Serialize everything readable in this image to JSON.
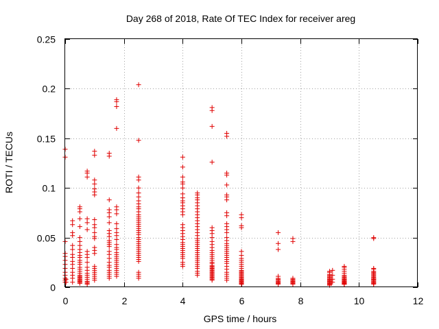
{
  "chart_data": {
    "type": "scatter",
    "title": "Day 268 of 2018, Rate Of TEC Index for receiver areg",
    "xlabel": "GPS time / hours",
    "ylabel": "ROTI / TECUs",
    "xlim": [
      0,
      12
    ],
    "ylim": [
      0,
      0.25
    ],
    "xticks": [
      0,
      2,
      4,
      6,
      8,
      10,
      12
    ],
    "yticks": [
      0,
      0.05,
      0.1,
      0.15,
      0.2,
      0.25
    ],
    "xtick_labels": [
      "0",
      "2",
      "4",
      "6",
      "8",
      "10",
      "12"
    ],
    "ytick_labels": [
      "0",
      "0.05",
      "0.1",
      "0.15",
      "0.2",
      "0.25"
    ],
    "grid": true,
    "marker": "+",
    "color": "#e00000",
    "series": [
      {
        "name": "ROTI",
        "x": [
          0,
          0,
          0,
          0,
          0,
          0,
          0,
          0,
          0,
          0,
          0,
          0,
          0,
          0.03,
          0.03,
          0.25,
          0.25,
          0.25,
          0.25,
          0.25,
          0.25,
          0.25,
          0.25,
          0.25,
          0.25,
          0.25,
          0.25,
          0.25,
          0.25,
          0.25,
          0.5,
          0.5,
          0.5,
          0.5,
          0.5,
          0.5,
          0.5,
          0.5,
          0.5,
          0.5,
          0.5,
          0.5,
          0.5,
          0.5,
          0.5,
          0.5,
          0.5,
          0.5,
          0.5,
          0.5,
          0.5,
          0.5,
          0.5,
          0.5,
          0.5,
          0.5,
          0.5,
          0.5,
          0.5,
          0.5,
          0.75,
          0.75,
          0.75,
          0.75,
          0.75,
          0.75,
          0.75,
          0.75,
          0.75,
          0.75,
          0.75,
          0.75,
          0.75,
          0.75,
          0.75,
          0.75,
          0.75,
          0.75,
          0.75,
          0.75,
          1,
          1,
          1,
          1,
          1,
          1,
          1,
          1,
          1,
          1,
          1,
          1,
          1,
          1,
          1,
          1,
          1,
          1,
          1,
          1,
          1,
          1,
          1,
          1,
          1.5,
          1.5,
          1.5,
          1.5,
          1.5,
          1.5,
          1.5,
          1.5,
          1.5,
          1.5,
          1.5,
          1.5,
          1.5,
          1.5,
          1.5,
          1.5,
          1.5,
          1.5,
          1.5,
          1.5,
          1.5,
          1.5,
          1.5,
          1.5,
          1.5,
          1.75,
          1.75,
          1.75,
          1.75,
          1.75,
          1.75,
          1.75,
          1.75,
          1.75,
          1.75,
          1.75,
          1.75,
          1.75,
          1.75,
          1.75,
          1.75,
          1.75,
          1.75,
          1.75,
          1.75,
          1.75,
          1.75,
          1.75,
          1.75,
          1.75,
          1.75,
          1.75,
          1.75,
          2.5,
          2.5,
          2.5,
          2.5,
          2.5,
          2.5,
          2.5,
          2.5,
          2.5,
          2.5,
          2.5,
          2.5,
          2.5,
          2.5,
          2.5,
          2.5,
          2.5,
          2.5,
          2.5,
          2.5,
          2.5,
          2.5,
          2.5,
          2.5,
          2.5,
          2.5,
          2.5,
          2.5,
          2.5,
          2.5,
          2.5,
          2.5,
          2.5,
          2.5,
          2.5,
          2.5,
          2.5,
          2.5,
          2.5,
          2.5,
          4,
          4,
          4,
          4,
          4,
          4,
          4,
          4,
          4,
          4,
          4,
          4,
          4,
          4,
          4,
          4,
          4,
          4,
          4,
          4,
          4,
          4,
          4,
          4,
          4,
          4,
          4,
          4,
          4,
          4,
          4,
          4,
          4.5,
          4.5,
          4.5,
          4.5,
          4.5,
          4.5,
          4.5,
          4.5,
          4.5,
          4.5,
          4.5,
          4.5,
          4.5,
          4.5,
          4.5,
          4.5,
          4.5,
          4.5,
          4.5,
          4.5,
          4.5,
          4.5,
          4.5,
          4.5,
          4.5,
          4.5,
          4.5,
          4.5,
          4.5,
          4.5,
          4.5,
          4.5,
          4.5,
          4.5,
          4.5,
          5,
          5,
          5,
          5,
          5,
          5,
          5,
          5,
          5,
          5,
          5,
          5,
          5,
          5,
          5,
          5,
          5,
          5,
          5,
          5,
          5,
          5,
          5,
          5,
          5,
          5,
          5,
          5,
          5,
          5,
          5,
          5,
          5,
          5,
          5,
          5.5,
          5.5,
          5.5,
          5.5,
          5.5,
          5.5,
          5.5,
          5.5,
          5.5,
          5.5,
          5.5,
          5.5,
          5.5,
          5.5,
          5.5,
          5.5,
          5.5,
          5.5,
          5.5,
          5.5,
          5.5,
          5.5,
          5.5,
          5.5,
          5.5,
          5.5,
          5.5,
          5.5,
          5.5,
          5.5,
          5.5,
          5.5,
          5.5,
          5.5,
          6,
          6,
          6,
          6,
          6,
          6,
          6,
          6,
          6,
          6,
          6,
          6,
          6,
          6,
          6,
          6,
          6,
          6,
          6,
          6,
          6,
          6,
          6,
          6,
          6,
          6,
          6,
          6,
          6,
          6,
          6,
          6,
          6,
          6,
          7.25,
          7.25,
          7.25,
          7.25,
          7.25,
          7.25,
          7.25,
          7.25,
          7.25,
          7.25,
          7.25,
          7.25,
          7.25,
          7.75,
          7.75,
          7.75,
          7.75,
          7.75,
          7.75,
          7.75,
          7.75,
          7.75,
          7.75,
          7.75,
          7.75,
          9,
          9,
          9,
          9,
          9,
          9,
          9,
          9,
          9,
          9,
          9,
          9,
          9,
          9,
          9,
          9,
          9,
          9,
          9,
          9,
          9,
          9,
          9.1,
          9.1,
          9.1,
          9.1,
          9.5,
          9.5,
          9.5,
          9.5,
          9.5,
          9.5,
          9.5,
          9.5,
          9.5,
          9.5,
          9.5,
          9.5,
          9.5,
          9.5,
          9.5,
          9.5,
          9.5,
          9.5,
          9.5,
          9.5,
          9.5,
          9.5,
          9.5,
          9.5,
          9.5,
          10.5,
          10.5,
          10.5,
          10.5,
          10.5,
          10.5,
          10.5,
          10.5,
          10.5,
          10.5,
          10.5,
          10.5,
          10.5,
          10.5,
          10.5,
          10.5,
          10.5,
          10.5,
          10.5,
          10.5,
          10.5,
          10.5,
          10.5
        ],
        "y": [
          0.034,
          0.031,
          0.027,
          0.023,
          0.019,
          0.015,
          0.012,
          0.009,
          0.007,
          0.005,
          0.046,
          0.131,
          0.139,
          0.005,
          0.008,
          0.067,
          0.063,
          0.055,
          0.052,
          0.042,
          0.038,
          0.033,
          0.03,
          0.026,
          0.023,
          0.019,
          0.015,
          0.012,
          0.009,
          0.005,
          0.081,
          0.079,
          0.076,
          0.069,
          0.061,
          0.05,
          0.046,
          0.042,
          0.038,
          0.035,
          0.032,
          0.03,
          0.027,
          0.025,
          0.023,
          0.02,
          0.018,
          0.016,
          0.014,
          0.012,
          0.011,
          0.01,
          0.009,
          0.008,
          0.007,
          0.006,
          0.005,
          0.004,
          0.004,
          0.006,
          0.117,
          0.115,
          0.111,
          0.069,
          0.065,
          0.058,
          0.036,
          0.033,
          0.03,
          0.025,
          0.02,
          0.017,
          0.014,
          0.012,
          0.01,
          0.008,
          0.006,
          0.005,
          0.004,
          0.003,
          0.137,
          0.133,
          0.108,
          0.104,
          0.099,
          0.096,
          0.093,
          0.068,
          0.063,
          0.06,
          0.055,
          0.051,
          0.049,
          0.04,
          0.037,
          0.034,
          0.021,
          0.019,
          0.017,
          0.015,
          0.013,
          0.011,
          0.009,
          0.007,
          0.135,
          0.132,
          0.088,
          0.078,
          0.075,
          0.071,
          0.065,
          0.057,
          0.054,
          0.051,
          0.047,
          0.045,
          0.043,
          0.041,
          0.036,
          0.033,
          0.029,
          0.025,
          0.022,
          0.02,
          0.017,
          0.015,
          0.013,
          0.011,
          0.009,
          0.189,
          0.187,
          0.182,
          0.16,
          0.081,
          0.078,
          0.074,
          0.064,
          0.059,
          0.055,
          0.052,
          0.048,
          0.043,
          0.04,
          0.038,
          0.035,
          0.033,
          0.031,
          0.029,
          0.027,
          0.025,
          0.023,
          0.021,
          0.019,
          0.017,
          0.015,
          0.013,
          0.011,
          0.204,
          0.148,
          0.111,
          0.108,
          0.1,
          0.095,
          0.091,
          0.087,
          0.084,
          0.081,
          0.079,
          0.076,
          0.073,
          0.071,
          0.069,
          0.067,
          0.065,
          0.063,
          0.061,
          0.059,
          0.057,
          0.055,
          0.053,
          0.05,
          0.048,
          0.046,
          0.044,
          0.042,
          0.04,
          0.038,
          0.036,
          0.034,
          0.032,
          0.03,
          0.028,
          0.026,
          0.015,
          0.013,
          0.011,
          0.009,
          0.131,
          0.121,
          0.111,
          0.106,
          0.104,
          0.1,
          0.094,
          0.09,
          0.087,
          0.085,
          0.082,
          0.079,
          0.076,
          0.073,
          0.063,
          0.06,
          0.057,
          0.054,
          0.051,
          0.048,
          0.045,
          0.043,
          0.041,
          0.039,
          0.037,
          0.035,
          0.033,
          0.031,
          0.029,
          0.025,
          0.023,
          0.021,
          0.095,
          0.093,
          0.09,
          0.088,
          0.085,
          0.082,
          0.079,
          0.076,
          0.073,
          0.07,
          0.067,
          0.064,
          0.061,
          0.058,
          0.055,
          0.052,
          0.049,
          0.047,
          0.045,
          0.043,
          0.041,
          0.039,
          0.037,
          0.035,
          0.033,
          0.031,
          0.029,
          0.027,
          0.025,
          0.023,
          0.021,
          0.019,
          0.016,
          0.014,
          0.012,
          0.181,
          0.178,
          0.162,
          0.126,
          0.06,
          0.057,
          0.054,
          0.05,
          0.046,
          0.043,
          0.04,
          0.037,
          0.035,
          0.033,
          0.031,
          0.029,
          0.027,
          0.025,
          0.024,
          0.022,
          0.021,
          0.02,
          0.019,
          0.018,
          0.017,
          0.016,
          0.015,
          0.014,
          0.013,
          0.012,
          0.011,
          0.01,
          0.009,
          0.008,
          0.007,
          0.155,
          0.152,
          0.115,
          0.113,
          0.103,
          0.093,
          0.091,
          0.088,
          0.075,
          0.072,
          0.064,
          0.061,
          0.058,
          0.055,
          0.05,
          0.047,
          0.044,
          0.042,
          0.04,
          0.038,
          0.036,
          0.034,
          0.032,
          0.03,
          0.028,
          0.026,
          0.024,
          0.021,
          0.018,
          0.015,
          0.013,
          0.011,
          0.009,
          0.007,
          0.073,
          0.07,
          0.062,
          0.06,
          0.036,
          0.032,
          0.029,
          0.027,
          0.025,
          0.023,
          0.021,
          0.019,
          0.017,
          0.016,
          0.015,
          0.014,
          0.013,
          0.012,
          0.011,
          0.01,
          0.009,
          0.009,
          0.008,
          0.008,
          0.007,
          0.007,
          0.006,
          0.006,
          0.005,
          0.005,
          0.004,
          0.004,
          0.003,
          0.003,
          0.055,
          0.044,
          0.038,
          0.011,
          0.009,
          0.008,
          0.007,
          0.006,
          0.005,
          0.005,
          0.004,
          0.004,
          0.003,
          0.049,
          0.046,
          0.009,
          0.008,
          0.007,
          0.006,
          0.006,
          0.005,
          0.005,
          0.004,
          0.004,
          0.003,
          0.016,
          0.015,
          0.013,
          0.012,
          0.011,
          0.01,
          0.009,
          0.008,
          0.008,
          0.007,
          0.007,
          0.006,
          0.006,
          0.005,
          0.005,
          0.004,
          0.004,
          0.003,
          0.003,
          0.003,
          0.002,
          0.002,
          0.017,
          0.012,
          0.008,
          0.005,
          0.021,
          0.02,
          0.018,
          0.016,
          0.014,
          0.012,
          0.011,
          0.01,
          0.009,
          0.009,
          0.008,
          0.008,
          0.007,
          0.007,
          0.006,
          0.006,
          0.005,
          0.005,
          0.005,
          0.004,
          0.004,
          0.004,
          0.003,
          0.003,
          0.003,
          0.05,
          0.049,
          0.019,
          0.018,
          0.016,
          0.015,
          0.014,
          0.013,
          0.012,
          0.011,
          0.01,
          0.009,
          0.009,
          0.008,
          0.008,
          0.007,
          0.007,
          0.006,
          0.005,
          0.005,
          0.004,
          0.004,
          0.003
        ]
      }
    ]
  }
}
